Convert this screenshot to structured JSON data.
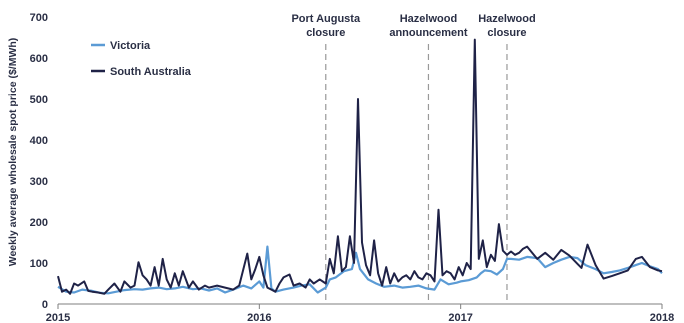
{
  "chart_data": {
    "type": "line",
    "ylabel": "Weekly average wholesale spot price ($/MWh)",
    "xlim": [
      2015.0,
      2018.0
    ],
    "ylim": [
      0,
      700
    ],
    "y_ticks": [
      "0",
      "100",
      "200",
      "300",
      "400",
      "500",
      "600",
      "700"
    ],
    "x_ticks": [
      "2015",
      "2016",
      "2017",
      "2018"
    ],
    "legend_position": "top-left",
    "annotations": [
      {
        "x": 2016.33,
        "lines": [
          "Port Augusta",
          "closure"
        ]
      },
      {
        "x": 2016.84,
        "lines": [
          "Hazelwood",
          "announcement"
        ]
      },
      {
        "x": 2017.23,
        "lines": [
          "Hazelwood",
          "closure"
        ]
      }
    ],
    "series": [
      {
        "name": "Victoria",
        "color": "#5b9bd5",
        "points": [
          [
            2015.0,
            42
          ],
          [
            2015.04,
            30
          ],
          [
            2015.08,
            28
          ],
          [
            2015.12,
            35
          ],
          [
            2015.17,
            32
          ],
          [
            2015.21,
            27
          ],
          [
            2015.25,
            26
          ],
          [
            2015.29,
            30
          ],
          [
            2015.33,
            34
          ],
          [
            2015.38,
            36
          ],
          [
            2015.42,
            35
          ],
          [
            2015.46,
            38
          ],
          [
            2015.5,
            40
          ],
          [
            2015.54,
            36
          ],
          [
            2015.58,
            38
          ],
          [
            2015.62,
            42
          ],
          [
            2015.67,
            36
          ],
          [
            2015.71,
            38
          ],
          [
            2015.75,
            33
          ],
          [
            2015.79,
            38
          ],
          [
            2015.83,
            28
          ],
          [
            2015.87,
            35
          ],
          [
            2015.92,
            45
          ],
          [
            2015.96,
            38
          ],
          [
            2016.0,
            55
          ],
          [
            2016.02,
            40
          ],
          [
            2016.04,
            140
          ],
          [
            2016.06,
            38
          ],
          [
            2016.08,
            30
          ],
          [
            2016.12,
            35
          ],
          [
            2016.17,
            40
          ],
          [
            2016.21,
            45
          ],
          [
            2016.25,
            48
          ],
          [
            2016.29,
            28
          ],
          [
            2016.33,
            40
          ],
          [
            2016.35,
            60
          ],
          [
            2016.38,
            65
          ],
          [
            2016.42,
            80
          ],
          [
            2016.46,
            85
          ],
          [
            2016.48,
            125
          ],
          [
            2016.5,
            85
          ],
          [
            2016.54,
            60
          ],
          [
            2016.58,
            50
          ],
          [
            2016.62,
            42
          ],
          [
            2016.67,
            45
          ],
          [
            2016.71,
            40
          ],
          [
            2016.75,
            42
          ],
          [
            2016.79,
            45
          ],
          [
            2016.83,
            38
          ],
          [
            2016.87,
            35
          ],
          [
            2016.9,
            60
          ],
          [
            2016.94,
            48
          ],
          [
            2016.98,
            52
          ],
          [
            2017.0,
            55
          ],
          [
            2017.04,
            58
          ],
          [
            2017.08,
            65
          ],
          [
            2017.1,
            75
          ],
          [
            2017.12,
            82
          ],
          [
            2017.15,
            80
          ],
          [
            2017.18,
            72
          ],
          [
            2017.21,
            85
          ],
          [
            2017.23,
            110
          ],
          [
            2017.25,
            110
          ],
          [
            2017.29,
            108
          ],
          [
            2017.33,
            115
          ],
          [
            2017.38,
            112
          ],
          [
            2017.42,
            90
          ],
          [
            2017.46,
            100
          ],
          [
            2017.5,
            108
          ],
          [
            2017.54,
            115
          ],
          [
            2017.58,
            112
          ],
          [
            2017.62,
            95
          ],
          [
            2017.67,
            85
          ],
          [
            2017.71,
            75
          ],
          [
            2017.75,
            78
          ],
          [
            2017.79,
            82
          ],
          [
            2017.83,
            88
          ],
          [
            2017.87,
            95
          ],
          [
            2017.9,
            100
          ],
          [
            2017.94,
            92
          ],
          [
            2017.98,
            85
          ],
          [
            2018.0,
            75
          ]
        ]
      },
      {
        "name": "South Australia",
        "color": "#1f2247",
        "points": [
          [
            2015.0,
            68
          ],
          [
            2015.02,
            30
          ],
          [
            2015.04,
            35
          ],
          [
            2015.06,
            25
          ],
          [
            2015.08,
            50
          ],
          [
            2015.1,
            45
          ],
          [
            2015.13,
            55
          ],
          [
            2015.15,
            32
          ],
          [
            2015.17,
            30
          ],
          [
            2015.2,
            28
          ],
          [
            2015.23,
            25
          ],
          [
            2015.25,
            35
          ],
          [
            2015.28,
            50
          ],
          [
            2015.31,
            30
          ],
          [
            2015.33,
            55
          ],
          [
            2015.36,
            40
          ],
          [
            2015.38,
            45
          ],
          [
            2015.4,
            102
          ],
          [
            2015.42,
            70
          ],
          [
            2015.44,
            60
          ],
          [
            2015.46,
            45
          ],
          [
            2015.48,
            90
          ],
          [
            2015.5,
            45
          ],
          [
            2015.52,
            110
          ],
          [
            2015.54,
            60
          ],
          [
            2015.56,
            40
          ],
          [
            2015.58,
            75
          ],
          [
            2015.6,
            45
          ],
          [
            2015.62,
            80
          ],
          [
            2015.65,
            40
          ],
          [
            2015.67,
            55
          ],
          [
            2015.7,
            35
          ],
          [
            2015.73,
            45
          ],
          [
            2015.75,
            40
          ],
          [
            2015.79,
            45
          ],
          [
            2015.83,
            40
          ],
          [
            2015.87,
            35
          ],
          [
            2015.9,
            45
          ],
          [
            2015.94,
            123
          ],
          [
            2015.96,
            60
          ],
          [
            2015.98,
            85
          ],
          [
            2016.0,
            115
          ],
          [
            2016.02,
            70
          ],
          [
            2016.04,
            40
          ],
          [
            2016.06,
            35
          ],
          [
            2016.08,
            30
          ],
          [
            2016.1,
            50
          ],
          [
            2016.12,
            65
          ],
          [
            2016.15,
            72
          ],
          [
            2016.17,
            45
          ],
          [
            2016.2,
            50
          ],
          [
            2016.23,
            40
          ],
          [
            2016.25,
            60
          ],
          [
            2016.27,
            50
          ],
          [
            2016.3,
            60
          ],
          [
            2016.33,
            50
          ],
          [
            2016.35,
            110
          ],
          [
            2016.37,
            75
          ],
          [
            2016.39,
            165
          ],
          [
            2016.41,
            80
          ],
          [
            2016.43,
            90
          ],
          [
            2016.45,
            165
          ],
          [
            2016.47,
            100
          ],
          [
            2016.49,
            500
          ],
          [
            2016.51,
            150
          ],
          [
            2016.53,
            95
          ],
          [
            2016.55,
            70
          ],
          [
            2016.57,
            155
          ],
          [
            2016.59,
            75
          ],
          [
            2016.61,
            45
          ],
          [
            2016.63,
            90
          ],
          [
            2016.65,
            50
          ],
          [
            2016.67,
            75
          ],
          [
            2016.69,
            55
          ],
          [
            2016.71,
            65
          ],
          [
            2016.73,
            70
          ],
          [
            2016.75,
            60
          ],
          [
            2016.77,
            80
          ],
          [
            2016.79,
            65
          ],
          [
            2016.81,
            60
          ],
          [
            2016.83,
            75
          ],
          [
            2016.85,
            70
          ],
          [
            2016.87,
            55
          ],
          [
            2016.89,
            230
          ],
          [
            2016.91,
            70
          ],
          [
            2016.93,
            80
          ],
          [
            2016.95,
            75
          ],
          [
            2016.97,
            60
          ],
          [
            2016.99,
            90
          ],
          [
            2017.01,
            70
          ],
          [
            2017.03,
            100
          ],
          [
            2017.05,
            85
          ],
          [
            2017.07,
            645
          ],
          [
            2017.09,
            110
          ],
          [
            2017.11,
            155
          ],
          [
            2017.13,
            90
          ],
          [
            2017.15,
            120
          ],
          [
            2017.17,
            105
          ],
          [
            2017.19,
            195
          ],
          [
            2017.21,
            130
          ],
          [
            2017.23,
            120
          ],
          [
            2017.25,
            128
          ],
          [
            2017.27,
            120
          ],
          [
            2017.29,
            125
          ],
          [
            2017.31,
            135
          ],
          [
            2017.33,
            140
          ],
          [
            2017.35,
            128
          ],
          [
            2017.38,
            110
          ],
          [
            2017.42,
            125
          ],
          [
            2017.46,
            108
          ],
          [
            2017.5,
            132
          ],
          [
            2017.54,
            118
          ],
          [
            2017.58,
            98
          ],
          [
            2017.6,
            88
          ],
          [
            2017.63,
            145
          ],
          [
            2017.67,
            95
          ],
          [
            2017.71,
            62
          ],
          [
            2017.75,
            68
          ],
          [
            2017.79,
            75
          ],
          [
            2017.83,
            82
          ],
          [
            2017.87,
            110
          ],
          [
            2017.9,
            115
          ],
          [
            2017.94,
            90
          ],
          [
            2017.98,
            82
          ],
          [
            2018.0,
            80
          ]
        ]
      }
    ]
  }
}
